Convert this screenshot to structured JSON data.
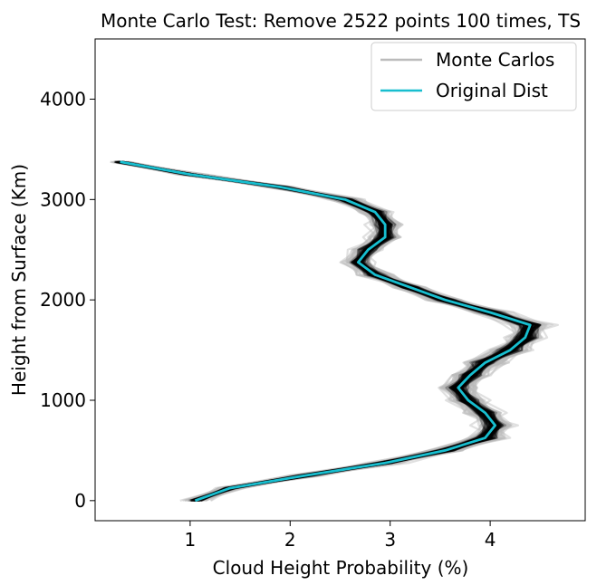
{
  "chart_data": {
    "type": "line",
    "title": "Monte Carlo Test: Remove 2522 points 100 times, TS",
    "xlabel": "Cloud Height Probability (%)",
    "ylabel": "Height from Surface (Km)",
    "xlim": [
      0.05,
      4.95
    ],
    "ylim": [
      -200,
      4600
    ],
    "xticks": [
      1,
      2,
      3,
      4
    ],
    "yticks": [
      0,
      1000,
      2000,
      3000,
      4000
    ],
    "grid": false,
    "legend": {
      "placement": "top-right",
      "entries": [
        "Monte Carlos",
        "Original Dist"
      ]
    },
    "colors": {
      "monte_carlo": "#000000",
      "monte_carlo_light": "#bbbbbb",
      "original": "#17becf"
    },
    "series": [
      {
        "name": "Original Dist",
        "heights": [
          0,
          125,
          250,
          375,
          500,
          625,
          750,
          875,
          1000,
          1125,
          1250,
          1375,
          1500,
          1625,
          1750,
          1875,
          2000,
          2125,
          2250,
          2375,
          2500,
          2625,
          2750,
          2875,
          3000,
          3125,
          3250,
          3375
        ],
        "values": [
          1.05,
          1.4,
          2.15,
          2.95,
          3.55,
          3.95,
          4.05,
          3.95,
          3.78,
          3.68,
          3.8,
          3.95,
          4.2,
          4.35,
          4.4,
          4.0,
          3.55,
          3.2,
          2.85,
          2.68,
          2.78,
          2.95,
          2.95,
          2.85,
          2.55,
          1.9,
          1.0,
          0.3
        ]
      },
      {
        "name": "Monte Carlos",
        "count": 100
      }
    ]
  }
}
